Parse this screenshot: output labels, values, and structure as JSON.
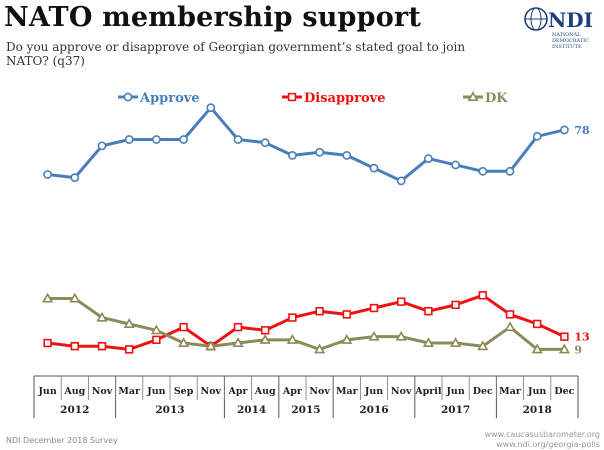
{
  "header": {
    "title": "NATO membership support",
    "subtitle": "Do you approve or disapprove of Georgian government’s stated goal to join NATO? (q37)"
  },
  "logo": {
    "name": "NDI",
    "lines": [
      "NATIONAL",
      "DEMOCRATIC",
      "INSTITUTE"
    ]
  },
  "footer": {
    "source": "NDI December 2018 Survey",
    "site_line1": "www.caucasusbarometer.org",
    "site_line2": "www.ndi.org/georgia-polls"
  },
  "chart_data": {
    "type": "line",
    "x_months": [
      "Jun",
      "Aug",
      "Nov",
      "Mar",
      "Jun",
      "Sep",
      "Nov",
      "Apr",
      "Aug",
      "Apr",
      "Nov",
      "Mar",
      "Jun",
      "Nov",
      "April",
      "Jun",
      "Dec",
      "Mar",
      "Jun",
      "Dec"
    ],
    "x_years": [
      {
        "label": "2012",
        "start": 0,
        "end": 2
      },
      {
        "label": "2013",
        "start": 3,
        "end": 6
      },
      {
        "label": "2014",
        "start": 7,
        "end": 8
      },
      {
        "label": "2015",
        "start": 9,
        "end": 10
      },
      {
        "label": "2016",
        "start": 11,
        "end": 13
      },
      {
        "label": "2017",
        "start": 14,
        "end": 16
      },
      {
        "label": "2018",
        "start": 17,
        "end": 19
      }
    ],
    "ylim": [
      0,
      100
    ],
    "series": [
      {
        "name": "Approve",
        "color": "#4a7ebb",
        "marker": "circle",
        "last_label": "78",
        "values": [
          64,
          63,
          73,
          75,
          75,
          75,
          85,
          75,
          74,
          70,
          71,
          70,
          66,
          62,
          69,
          67,
          65,
          65,
          76,
          78
        ]
      },
      {
        "name": "Disapprove",
        "color": "#ee1111",
        "marker": "square",
        "last_label": "13",
        "values": [
          11,
          10,
          10,
          9,
          12,
          16,
          10,
          16,
          15,
          19,
          21,
          20,
          22,
          24,
          21,
          23,
          26,
          20,
          17,
          13
        ]
      },
      {
        "name": "DK",
        "color": "#8c8a58",
        "marker": "triangle",
        "last_label": "9",
        "values": [
          25,
          25,
          19,
          17,
          15,
          11,
          10,
          11,
          12,
          12,
          9,
          12,
          13,
          13,
          11,
          11,
          10,
          16,
          9,
          9
        ]
      }
    ],
    "legend_position": "top",
    "grid": false
  }
}
